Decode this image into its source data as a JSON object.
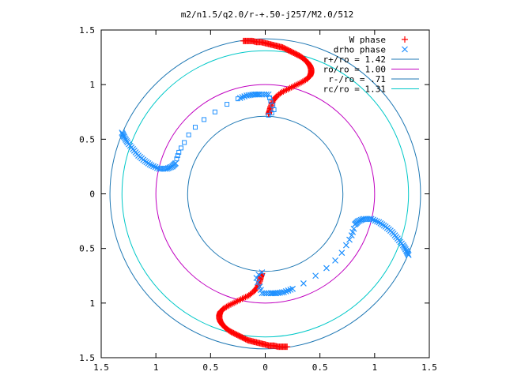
{
  "chart_data": {
    "type": "scatter",
    "title": "m2/n1.5/q2.0/r-+.50-j257/M2.0/512",
    "xlabel": "",
    "ylabel": "",
    "xlim": [
      -1.5,
      1.5
    ],
    "ylim": [
      -1.5,
      1.5
    ],
    "x_ticks": [
      -1.5,
      -1,
      -0.5,
      0,
      0.5,
      1,
      1.5
    ],
    "y_ticks": [
      -1.5,
      -1,
      -0.5,
      0,
      0.5,
      1,
      1.5
    ],
    "x_tick_labels": [
      "1.5",
      "1",
      "0.5",
      "0",
      "0.5",
      "1",
      "1.5"
    ],
    "y_tick_labels": [
      "1.5",
      "1",
      "0.5",
      "0",
      "0.5",
      "1",
      "1.5"
    ],
    "grid": false,
    "legend_position": "top-right",
    "circles": [
      {
        "label": "r+/ro = 1.42",
        "radius": 1.42,
        "color": "#1f78b4"
      },
      {
        "label": "ro/ro = 1.00",
        "radius": 1.0,
        "color": "#c000c0"
      },
      {
        "label": "r-/ro = .71",
        "radius": 0.71,
        "color": "#1f78b4"
      },
      {
        "label": "rc/ro = 1.31",
        "radius": 1.31,
        "color": "#00c8c8"
      }
    ],
    "series": [
      {
        "name": "W phase",
        "marker": "plus",
        "color": "#ff0000",
        "points": [
          [
            -0.2,
            1.4
          ],
          [
            -0.16,
            1.4
          ],
          [
            -0.12,
            1.4
          ],
          [
            -0.08,
            1.39
          ],
          [
            -0.04,
            1.39
          ],
          [
            0.0,
            1.38
          ],
          [
            0.04,
            1.37
          ],
          [
            0.08,
            1.36
          ],
          [
            0.12,
            1.35
          ],
          [
            0.16,
            1.34
          ],
          [
            0.2,
            1.32
          ],
          [
            0.24,
            1.3
          ],
          [
            0.28,
            1.28
          ],
          [
            0.32,
            1.26
          ],
          [
            0.36,
            1.23
          ],
          [
            0.39,
            1.2
          ],
          [
            0.41,
            1.17
          ],
          [
            0.42,
            1.14
          ],
          [
            0.42,
            1.11
          ],
          [
            0.41,
            1.08
          ],
          [
            0.38,
            1.05
          ],
          [
            0.33,
            1.02
          ],
          [
            0.27,
            0.99
          ],
          [
            0.21,
            0.96
          ],
          [
            0.15,
            0.93
          ],
          [
            0.1,
            0.89
          ],
          [
            0.07,
            0.85
          ],
          [
            0.05,
            0.8
          ],
          [
            0.04,
            0.76
          ],
          [
            0.03,
            0.73
          ],
          [
            0.2,
            -1.4
          ],
          [
            0.16,
            -1.4
          ],
          [
            0.12,
            -1.4
          ],
          [
            0.08,
            -1.39
          ],
          [
            0.04,
            -1.39
          ],
          [
            0.0,
            -1.38
          ],
          [
            -0.04,
            -1.37
          ],
          [
            -0.08,
            -1.36
          ],
          [
            -0.12,
            -1.35
          ],
          [
            -0.16,
            -1.34
          ],
          [
            -0.2,
            -1.32
          ],
          [
            -0.24,
            -1.3
          ],
          [
            -0.28,
            -1.28
          ],
          [
            -0.32,
            -1.26
          ],
          [
            -0.36,
            -1.23
          ],
          [
            -0.39,
            -1.2
          ],
          [
            -0.41,
            -1.17
          ],
          [
            -0.42,
            -1.14
          ],
          [
            -0.42,
            -1.11
          ],
          [
            -0.41,
            -1.08
          ],
          [
            -0.38,
            -1.05
          ],
          [
            -0.33,
            -1.02
          ],
          [
            -0.27,
            -0.99
          ],
          [
            -0.21,
            -0.96
          ],
          [
            -0.15,
            -0.93
          ],
          [
            -0.1,
            -0.89
          ],
          [
            -0.07,
            -0.85
          ],
          [
            -0.05,
            -0.8
          ],
          [
            -0.04,
            -0.76
          ],
          [
            -0.03,
            -0.73
          ]
        ]
      },
      {
        "name": "drho phase",
        "marker": "cross-and-square",
        "color": "#1e90ff",
        "points": [
          [
            0.03,
            0.72
          ],
          [
            0.06,
            0.74
          ],
          [
            0.08,
            0.77
          ],
          [
            0.07,
            0.81
          ],
          [
            0.05,
            0.85
          ],
          [
            0.04,
            0.88
          ],
          [
            0.03,
            0.91
          ],
          [
            -0.05,
            0.91
          ],
          [
            -0.1,
            0.91
          ],
          [
            -0.17,
            0.9
          ],
          [
            -0.25,
            0.87
          ],
          [
            -0.35,
            0.82
          ],
          [
            -0.46,
            0.75
          ],
          [
            -0.56,
            0.68
          ],
          [
            -0.64,
            0.61
          ],
          [
            -0.7,
            0.54
          ],
          [
            -0.74,
            0.47
          ],
          [
            -0.77,
            0.42
          ],
          [
            -0.79,
            0.38
          ],
          [
            -0.8,
            0.35
          ],
          [
            -0.81,
            0.32
          ],
          [
            -0.82,
            0.28
          ],
          [
            -0.85,
            0.25
          ],
          [
            -0.9,
            0.23
          ],
          [
            -0.97,
            0.23
          ],
          [
            -1.04,
            0.26
          ],
          [
            -1.1,
            0.3
          ],
          [
            -1.16,
            0.35
          ],
          [
            -1.21,
            0.41
          ],
          [
            -1.26,
            0.47
          ],
          [
            -1.29,
            0.52
          ],
          [
            -1.31,
            0.56
          ],
          [
            -0.03,
            -0.72
          ],
          [
            -0.06,
            -0.74
          ],
          [
            -0.08,
            -0.77
          ],
          [
            -0.07,
            -0.81
          ],
          [
            -0.05,
            -0.85
          ],
          [
            -0.04,
            -0.88
          ],
          [
            -0.03,
            -0.91
          ],
          [
            0.05,
            -0.91
          ],
          [
            0.1,
            -0.91
          ],
          [
            0.17,
            -0.9
          ],
          [
            0.25,
            -0.87
          ],
          [
            0.35,
            -0.82
          ],
          [
            0.46,
            -0.75
          ],
          [
            0.56,
            -0.68
          ],
          [
            0.64,
            -0.61
          ],
          [
            0.7,
            -0.54
          ],
          [
            0.74,
            -0.47
          ],
          [
            0.77,
            -0.42
          ],
          [
            0.79,
            -0.38
          ],
          [
            0.8,
            -0.35
          ],
          [
            0.81,
            -0.32
          ],
          [
            0.82,
            -0.28
          ],
          [
            0.85,
            -0.25
          ],
          [
            0.9,
            -0.23
          ],
          [
            0.97,
            -0.23
          ],
          [
            1.04,
            -0.26
          ],
          [
            1.1,
            -0.3
          ],
          [
            1.16,
            -0.35
          ],
          [
            1.21,
            -0.41
          ],
          [
            1.26,
            -0.47
          ],
          [
            1.29,
            -0.52
          ],
          [
            1.31,
            -0.56
          ]
        ]
      }
    ]
  }
}
